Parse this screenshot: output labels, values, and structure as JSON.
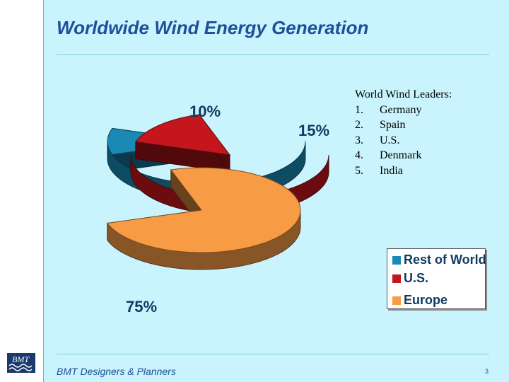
{
  "slide": {
    "title": "Worldwide Wind Energy Generation",
    "footer": "BMT Designers & Planners",
    "page_number": "3",
    "logo_text": "BMT"
  },
  "leaders": {
    "heading": "World Wind Leaders:",
    "items": [
      {
        "num": "1.",
        "name": "Germany"
      },
      {
        "num": "2.",
        "name": "Spain"
      },
      {
        "num": "3.",
        "name": "U.S."
      },
      {
        "num": "4.",
        "name": "Denmark"
      },
      {
        "num": "5.",
        "name": "India"
      }
    ]
  },
  "chart_data": {
    "type": "pie",
    "title": "",
    "style": "3d-exploded",
    "slices": [
      {
        "label": "Europe",
        "value": 75,
        "display": "75%",
        "color": "#f79b45"
      },
      {
        "label": "Rest of World",
        "value": 10,
        "display": "10%",
        "color": "#1a8ab4"
      },
      {
        "label": "U.S.",
        "value": 15,
        "display": "15%",
        "color": "#c4161c"
      }
    ],
    "legend": {
      "placement": "bottom-right",
      "entries": [
        {
          "label": "Rest of World",
          "color": "#1a8ab4"
        },
        {
          "label": "U.S.",
          "color": "#c4161c"
        },
        {
          "label": "Europe",
          "color": "#f79b45"
        }
      ]
    }
  }
}
